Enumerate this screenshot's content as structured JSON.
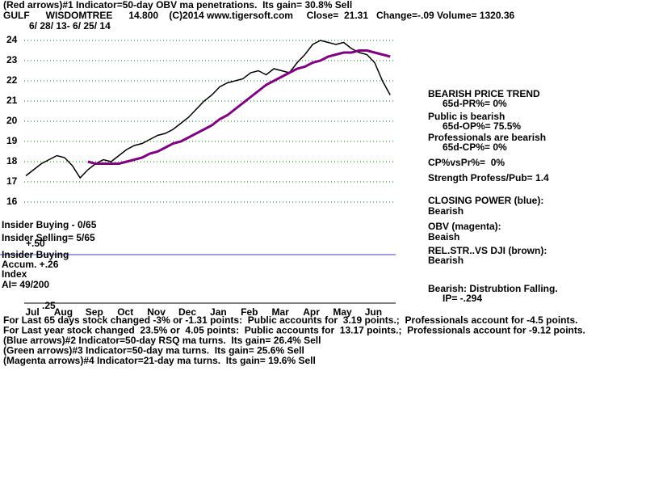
{
  "chart_data": {
    "type": "line",
    "title": "(Red arrows)#1 Indicator=50-day OBV ma penetrations.  Its gain= 30.8% Sell",
    "header": "GULF      WISDOMTREE      14.800    (C)2014 www.tigersoft.com     Close=  21.31   Change=-.09 Volume= 1320.36",
    "subtitle": "6/ 28/ 13- 6/ 25/ 14",
    "categories": [
      "Jul",
      null,
      null,
      null,
      "Aug",
      null,
      null,
      null,
      "Sep",
      null,
      null,
      null,
      "Oct",
      null,
      null,
      null,
      "Nov",
      null,
      null,
      null,
      "Dec",
      null,
      null,
      null,
      "Jan",
      null,
      null,
      null,
      "Feb",
      null,
      null,
      null,
      "Mar",
      null,
      null,
      null,
      "Apr",
      null,
      null,
      null,
      "May",
      null,
      null,
      null,
      "Jun",
      null,
      null,
      null
    ],
    "series": [
      {
        "color": "#000000",
        "values": [
          17.3,
          17.6,
          17.9,
          18.1,
          18.3,
          18.2,
          17.8,
          17.2,
          17.6,
          17.9,
          18.1,
          18.0,
          18.3,
          18.6,
          18.8,
          18.9,
          19.1,
          19.3,
          19.4,
          19.6,
          19.9,
          20.2,
          20.6,
          21.0,
          21.3,
          21.7,
          21.9,
          22.0,
          22.1,
          22.4,
          22.5,
          22.3,
          22.6,
          22.5,
          22.4,
          22.9,
          23.3,
          23.8,
          24.0,
          23.9,
          23.8,
          23.9,
          23.6,
          23.4,
          23.3,
          22.9,
          22.0,
          21.3
        ]
      },
      {
        "color": "#800080",
        "values": [
          null,
          null,
          null,
          null,
          null,
          null,
          null,
          null,
          18.0,
          17.9,
          17.9,
          17.9,
          17.9,
          18.0,
          18.1,
          18.2,
          18.4,
          18.5,
          18.7,
          18.9,
          19.0,
          19.2,
          19.4,
          19.6,
          19.8,
          20.1,
          20.3,
          20.6,
          20.9,
          21.2,
          21.5,
          21.8,
          22.0,
          22.2,
          22.4,
          22.6,
          22.7,
          22.9,
          23.0,
          23.2,
          23.3,
          23.4,
          23.4,
          23.5,
          23.5,
          23.4,
          23.3,
          23.2
        ]
      }
    ],
    "ylim": [
      16,
      24.8
    ],
    "yticks": [
      16,
      17,
      18,
      19,
      20,
      21,
      22,
      23,
      24
    ],
    "grid": true,
    "grid_color": "#008000",
    "annotations": [
      "Insider Buying - 0/65",
      "Insider Selling= 5/65",
      "Insider Buying",
      "Accum. +.26",
      "Index",
      "AI= 49/200",
      "+.50",
      ".25",
      "BEARISH PRICE TREND",
      "65d-PR%= 0%",
      "Public is bearish",
      "65d-OP%= 75.5%",
      "Professionals are bearish",
      "65d-CP%= 0%",
      "CP%vsPr%=  0%",
      "Strength Profess/Pub= 1.4",
      "CLOSING POWER (blue):",
      "Bearish",
      "OBV (magenta):",
      "Beaish",
      "REL.STR..VS DJI (brown):",
      "Bearish",
      "Bearish: Distrubtion Falling.",
      "IP= -.294"
    ],
    "footer": [
      "For Last 65 days stock changed -3% or -1.31 points:  Public accounts for  3.19 points.;  Professionals account for -4.5 points.",
      "For Last year stock changed  23.5% or  4.05 points:  Public accounts for  13.17 points.;  Professionals account for -9.12 points.",
      "(Blue arrows)#2 Indicator=50-day RSQ ma turns.  Its gain= 26.4% Sell",
      "(Green arrows)#3 Indicator=50-day ma turns.  Its gain= 25.6% Sell",
      "(Magenta arrows)#4 Indicator=21-day ma turns.  Its gain= 19.6% Sell"
    ]
  }
}
